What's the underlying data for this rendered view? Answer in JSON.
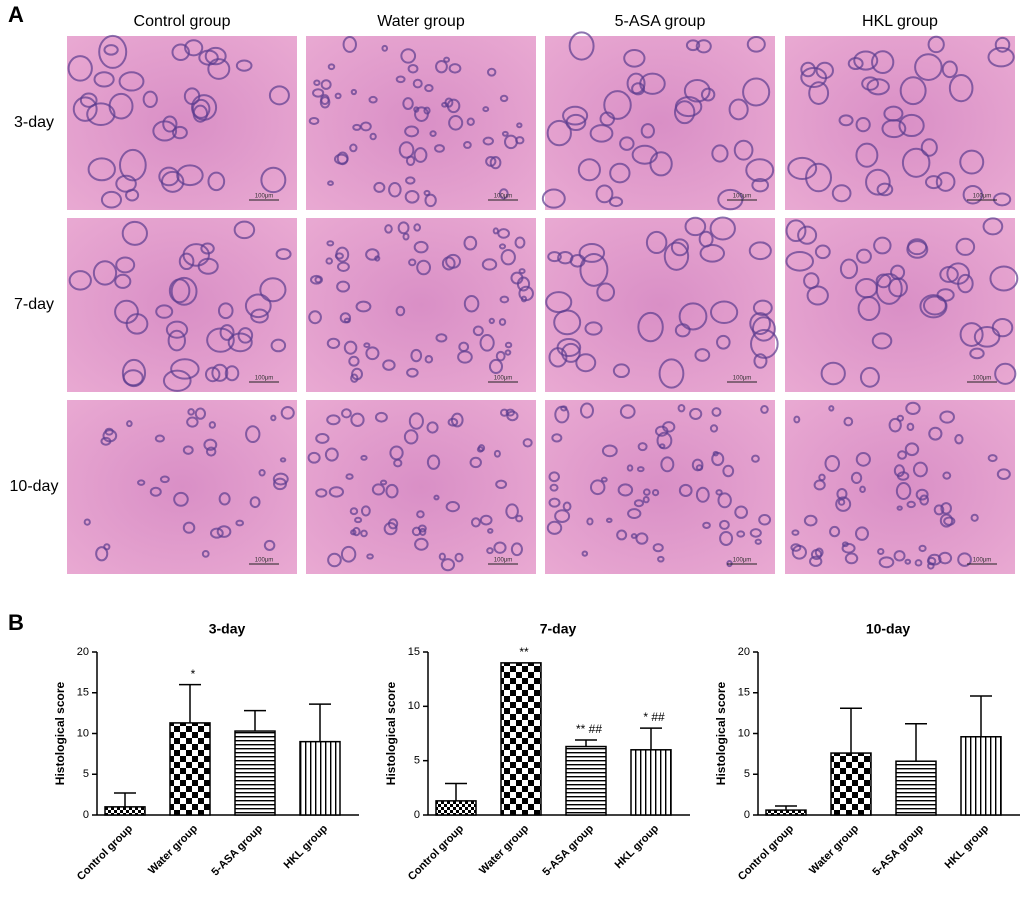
{
  "figure_labels": {
    "panel_a": "A",
    "panel_b": "B"
  },
  "histology": {
    "columns": [
      "Control group",
      "Water group",
      "5-ASA group",
      "HKL group"
    ],
    "rows": [
      "3-day",
      "7-day",
      "10-day"
    ],
    "scale_bar": "100μm"
  },
  "chart_data": [
    {
      "type": "bar",
      "title": "3-day",
      "y_label": "Histological score",
      "categories": [
        "Control group",
        "Water group",
        "5-ASA group",
        "HKL group"
      ],
      "values": [
        1.0,
        11.3,
        10.3,
        9.0
      ],
      "errors": [
        1.7,
        4.7,
        2.5,
        4.6
      ],
      "annotations": [
        null,
        "*",
        null,
        null
      ],
      "patterns": [
        "fine-checker",
        "checker",
        "horizontal",
        "vertical"
      ],
      "ylim": [
        0,
        20
      ],
      "yticks": [
        0,
        5,
        10,
        15,
        20
      ]
    },
    {
      "type": "bar",
      "title": "7-day",
      "y_label": "Histological score",
      "categories": [
        "Control group",
        "Water group",
        "5-ASA group",
        "HKL group"
      ],
      "values": [
        1.3,
        14.0,
        6.3,
        6.0
      ],
      "errors": [
        1.6,
        0,
        0.6,
        2.0
      ],
      "annotations": [
        null,
        "**",
        "** ##",
        "* ##"
      ],
      "patterns": [
        "fine-checker",
        "checker",
        "horizontal",
        "vertical"
      ],
      "ylim": [
        0,
        15
      ],
      "yticks": [
        0,
        5,
        10,
        15
      ]
    },
    {
      "type": "bar",
      "title": "10-day",
      "y_label": "Histological score",
      "categories": [
        "Control group",
        "Water group",
        "5-ASA group",
        "HKL group"
      ],
      "values": [
        0.6,
        7.6,
        6.6,
        9.6
      ],
      "errors": [
        0.5,
        5.5,
        4.6,
        5.0
      ],
      "annotations": [
        null,
        null,
        null,
        null
      ],
      "patterns": [
        "fine-checker",
        "checker",
        "horizontal",
        "vertical"
      ],
      "ylim": [
        0,
        20
      ],
      "yticks": [
        0,
        5,
        10,
        15,
        20
      ]
    }
  ]
}
